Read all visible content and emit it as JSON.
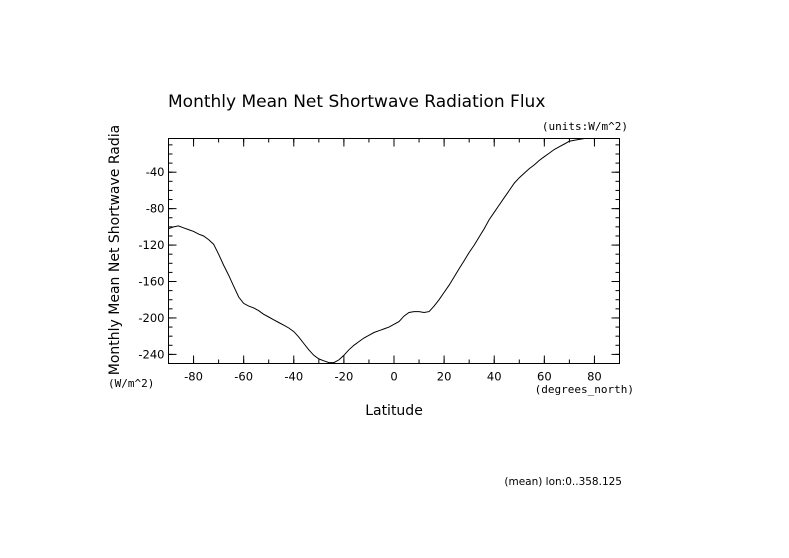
{
  "chart_data": {
    "type": "line",
    "title": "Monthly Mean Net Shortwave Radiation Flux",
    "units_label": "(units:W/m^2)",
    "xlabel": "Latitude",
    "x_units": "(degrees_north)",
    "ylabel": "Monthly Mean Net Shortwave Radia",
    "y_units": "(W/m^2)",
    "footer": "(mean) lon:0..358.125",
    "xlim": [
      -90,
      90
    ],
    "ylim": [
      -250,
      -3
    ],
    "xticks": [
      -80,
      -60,
      -40,
      -20,
      0,
      20,
      40,
      60,
      80
    ],
    "yticks": [
      -40,
      -80,
      -120,
      -160,
      -200,
      -240
    ],
    "grid": false,
    "series": [
      {
        "x": [
          -90,
          -88,
          -86,
          -84,
          -82,
          -80,
          -78,
          -76,
          -74,
          -72,
          -70,
          -68,
          -66,
          -64,
          -62,
          -60,
          -58,
          -56,
          -54,
          -52,
          -50,
          -48,
          -46,
          -44,
          -42,
          -40,
          -38,
          -36,
          -34,
          -32,
          -30,
          -28,
          -26,
          -24,
          -22,
          -20,
          -18,
          -16,
          -14,
          -12,
          -10,
          -8,
          -6,
          -4,
          -2,
          0,
          2,
          4,
          6,
          8,
          10,
          12,
          14,
          16,
          18,
          20,
          22,
          24,
          26,
          28,
          30,
          32,
          34,
          36,
          38,
          40,
          42,
          44,
          46,
          48,
          50,
          52,
          54,
          56,
          58,
          60,
          62,
          64,
          66,
          68,
          70,
          72,
          74,
          76,
          78,
          80,
          82,
          84,
          86,
          88,
          90
        ],
        "y": [
          -102,
          -100,
          -99,
          -101,
          -103,
          -105,
          -108,
          -110,
          -114,
          -119,
          -130,
          -142,
          -153,
          -165,
          -177,
          -184,
          -187,
          -189,
          -192,
          -196,
          -199,
          -202,
          -205,
          -208,
          -211,
          -215,
          -221,
          -228,
          -235,
          -241,
          -245,
          -247,
          -249,
          -249,
          -246,
          -241,
          -235,
          -230,
          -226,
          -222,
          -219,
          -216,
          -214,
          -212,
          -210,
          -207,
          -204,
          -198,
          -194,
          -193,
          -193,
          -194,
          -193,
          -187,
          -180,
          -172,
          -164,
          -155,
          -146,
          -137,
          -128,
          -120,
          -111,
          -102,
          -92,
          -84,
          -76,
          -68,
          -60,
          -52,
          -46,
          -41,
          -36,
          -32,
          -27,
          -23,
          -19,
          -15,
          -12,
          -9,
          -6,
          -5,
          -4,
          -3,
          -3,
          -3,
          -3,
          -3,
          -3,
          -3,
          -3
        ]
      }
    ]
  }
}
